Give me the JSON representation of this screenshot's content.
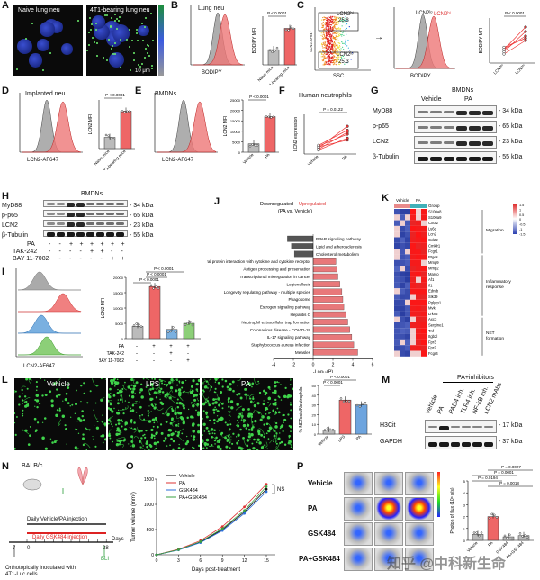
{
  "panels": {
    "A": {
      "letter": "A",
      "left": "Naive lung neu",
      "right": "4T1-bearing lung neu",
      "scale": "10 μm"
    },
    "B": {
      "letter": "B",
      "title": "Lung neu",
      "xlabel": "BODIPY",
      "ylabel": "BODIPY MFI",
      "cats": [
        "Naive mice",
        "4T1-bearing mice"
      ],
      "p": "P < 0.0001"
    },
    "C": {
      "letter": "C",
      "lcn2hi": "LCN2ʰⁱ",
      "lcn2hi_pct": "25.8",
      "lcn2lo": "LCN2ˡᵒ",
      "lcn2lo_pct": "25.3",
      "ylabel": "LCN2-AF647",
      "xlabel": "SSC",
      "xlabel2": "BODIPY",
      "ylabel2": "BODIPY MFI",
      "p": "P < 0.0001",
      "cats": [
        "LCN2ˡᵒ",
        "LCN2ʰⁱ"
      ]
    },
    "D": {
      "letter": "D",
      "title": "Implanted neu",
      "xlabel": "LCN2-AF647",
      "ylabel": "LCN2 MFI",
      "cats": [
        "Naive mice",
        "4T1-bearing mice"
      ],
      "p": "P < 0.0001"
    },
    "E": {
      "letter": "E",
      "title": "BMDNs",
      "xlabel": "LCN2-AF647",
      "ylabel": "LCN2 MFI",
      "cats": [
        "Vehicle",
        "PA"
      ],
      "p": "P < 0.0001"
    },
    "F": {
      "letter": "F",
      "title": "Human neutrophils",
      "ylabel": "LCN2 expression",
      "cats": [
        "Vehicle",
        "PA"
      ],
      "p": "P = 0.0122"
    },
    "G": {
      "letter": "G",
      "title": "BMDNs",
      "groups": [
        "Vehicle",
        "PA"
      ],
      "rows": [
        "MyD88",
        "p-p65",
        "LCN2",
        "β-Tubulin"
      ],
      "kda": [
        "34 kDa",
        "65 kDa",
        "23 kDa",
        "55 kDa"
      ]
    },
    "H": {
      "letter": "H",
      "title": "BMDNs",
      "rows": [
        "MyD88",
        "p-p65",
        "LCN2",
        "β-Tubulin"
      ],
      "kda": [
        "34 kDa",
        "65 kDa",
        "23 kDa",
        "55 kDa"
      ],
      "treat": [
        "PA",
        "TAK-242",
        "BAY 11-7082"
      ],
      "signs": [
        [
          "-",
          "+",
          "+",
          "+"
        ],
        [
          "-",
          "-",
          "+",
          "-"
        ],
        [
          "-",
          "-",
          "-",
          "+"
        ]
      ]
    },
    "I": {
      "letter": "I",
      "xlabel": "LCN2-AF647",
      "ylabel": "LCN2 MFI",
      "treat": [
        "PA",
        "TAK-242",
        "BAY 11-7082"
      ],
      "p": "P < 0.0001",
      "signs": [
        [
          "-",
          "+",
          "+",
          "+"
        ],
        [
          "-",
          "-",
          "+",
          "-"
        ],
        [
          "-",
          "-",
          "-",
          "+"
        ]
      ]
    },
    "J": {
      "letter": "J",
      "down": "Downregulated",
      "up": "Upregulated",
      "sub": "(PA vs. Vehicle)",
      "xlabel": "-Log₁₀(P)",
      "ticks": [
        "-4",
        "-2",
        "0",
        "2",
        "4",
        "6"
      ],
      "pathways": [
        "PPAR signaling pathway",
        "Lipid and atherosclerosis",
        "Cholesterol metabolism",
        "Viral protein interaction with cytokine and cytokine receptor",
        "Antigen processing and presentation",
        "Transcriptional misregulation in cancer",
        "Legionellosis",
        "Longevity regulating pathway - multiple species",
        "Phagosome",
        "Estrogen signaling pathway",
        "Hepatitis C",
        "Neutrophil extracellular trap formation",
        "Coronavirus disease - COVID-19",
        "IL-17 signaling pathway",
        "Staphylococcus aureus infection",
        "Measles"
      ]
    },
    "K": {
      "letter": "K",
      "groups": [
        "Vehicle",
        "PA"
      ],
      "group_lbl": "Group",
      "scale": [
        "1.5",
        "1",
        "0.5",
        "0",
        "-0.5",
        "-1",
        "-1.5"
      ],
      "genes": [
        "S100a8",
        "S100a9",
        "Cxcr2",
        "Ly6g",
        "Lcn2",
        "Ccl22",
        "Cmklr1",
        "Fcgr1",
        "Ptges",
        "Mmp9",
        "Mmp2",
        "Marco",
        "Af1",
        "Il1",
        "Ednrb",
        "Slk39",
        "Pglyrp1",
        "Mvk",
        "Lrkn5",
        "Axc3",
        "Serpine1",
        "Tnf",
        "Itgb2l",
        "Fpr3",
        "Fpr2",
        "Fcgr4"
      ],
      "cats": [
        "Migration",
        "Inflammatory response",
        "NET formation"
      ]
    },
    "L": {
      "letter": "L",
      "imgs": [
        "Vehicle",
        "LPS",
        "PA"
      ],
      "ylabel": "% NETosis/Neutrophils",
      "cats": [
        "Vehicle",
        "LPS",
        "PA"
      ],
      "p1": "P < 0.0001",
      "p2": "P < 0.0001"
    },
    "M": {
      "letter": "M",
      "title": "PA+inhibitors",
      "lanes": [
        "Vehicle",
        "PA",
        "PAD4 inh.",
        "TLR4 inh.",
        "NF-kB inh.",
        "LCN2 mAbs"
      ],
      "rows": [
        "H3Cit",
        "GAPDH"
      ],
      "kda": [
        "17 kDa",
        "37 kDa"
      ]
    },
    "N": {
      "letter": "N",
      "mouse": "BALB/c",
      "daily1": "Daily Vehicle/PA injection",
      "daily2": "Daily GSK484 injection",
      "days": "Days",
      "d0": "0",
      "dm7": "-7",
      "d28": "28",
      "bli": "BLI",
      "note": "Orthotopically inoculated with 4T1-Luc cells"
    },
    "O": {
      "letter": "O",
      "series": [
        "Vehicle",
        "PA",
        "GSK484",
        "PA+GSK484"
      ],
      "ylabel": "Tumor volume (mm³)",
      "xlabel": "Days post-treatment",
      "ns": "NS",
      "xticks": [
        "0",
        "3",
        "6",
        "9",
        "12",
        "15"
      ],
      "yticks": [
        "0",
        "500",
        "1000",
        "1500"
      ]
    },
    "P": {
      "letter": "P",
      "rows": [
        "Vehicle",
        "PA",
        "GSK484",
        "PA+GSK484"
      ],
      "ylabel": "Photon of flux (10⁶ p/s)",
      "cats": [
        "Vehicle",
        "PA",
        "GSK484",
        "PA+GSK484"
      ],
      "p": [
        "P = 0.0027",
        "P = 0.0001",
        "P = 0.0194",
        "P = 0.0018"
      ]
    },
    "watermark": "知乎 @中科新生命"
  },
  "chart_data": [
    {
      "type": "bar",
      "panel": "B",
      "categories": [
        "Naive mice",
        "4T1-bearing mice"
      ],
      "values": [
        500,
        1200
      ],
      "title": "Lung neu",
      "ylabel": "BODIPY MFI"
    },
    {
      "type": "bar",
      "panel": "D",
      "categories": [
        "Naive mice",
        "4T1-bearing mice"
      ],
      "values": [
        3000,
        10000
      ],
      "title": "Implanted neu",
      "ylabel": "LCN2 MFI"
    },
    {
      "type": "bar",
      "panel": "E",
      "categories": [
        "Vehicle",
        "PA"
      ],
      "values": [
        4000,
        17000
      ],
      "ylabel": "LCN2 MFI",
      "ylim": [
        0,
        25000
      ],
      "yticks": [
        0,
        5000,
        10000,
        15000,
        20000,
        25000
      ]
    },
    {
      "type": "bar",
      "panel": "I",
      "categories": [
        "1",
        "2",
        "3",
        "4"
      ],
      "values": [
        4000,
        17000,
        3000,
        5000
      ],
      "ylabel": "LCN2 MFI",
      "ylim": [
        0,
        20000
      ],
      "yticks": [
        0,
        5000,
        10000,
        15000,
        20000
      ]
    },
    {
      "type": "bar",
      "panel": "J",
      "categories": [
        "PPAR signaling pathway",
        "Lipid and atherosclerosis",
        "Cholesterol metabolism",
        "Viral protein interaction with cytokine and cytokine receptor",
        "Antigen processing and presentation",
        "Transcriptional misregulation in cancer",
        "Legionellosis",
        "Longevity regulating pathway - multiple species",
        "Phagosome",
        "Estrogen signaling pathway",
        "Hepatitis C",
        "Neutrophil extracellular trap formation",
        "Coronavirus disease - COVID-19",
        "IL-17 signaling pathway",
        "Staphylococcus aureus infection",
        "Measles"
      ],
      "values": [
        -2.6,
        -2.2,
        -1.9,
        2.3,
        2.4,
        2.5,
        2.7,
        2.9,
        3.0,
        3.1,
        3.3,
        3.5,
        3.7,
        3.9,
        4.1,
        4.5
      ],
      "xlabel": "-Log₁₀(P)",
      "xlim": [
        -4,
        6
      ]
    },
    {
      "type": "bar",
      "panel": "L",
      "categories": [
        "Vehicle",
        "LPS",
        "PA"
      ],
      "values": [
        4,
        35,
        30
      ],
      "ylabel": "% NETosis/Neutrophils",
      "ylim": [
        0,
        50
      ],
      "yticks": [
        0,
        10,
        20,
        30,
        40,
        50
      ]
    },
    {
      "type": "line",
      "panel": "O",
      "x": [
        0,
        3,
        6,
        9,
        12,
        15
      ],
      "series": [
        {
          "name": "Vehicle",
          "values": [
            0,
            100,
            250,
            500,
            850,
            1300
          ]
        },
        {
          "name": "PA",
          "values": [
            0,
            110,
            280,
            560,
            950,
            1400
          ]
        },
        {
          "name": "GSK484",
          "values": [
            0,
            95,
            240,
            480,
            820,
            1250
          ]
        },
        {
          "name": "PA+GSK484",
          "values": [
            0,
            100,
            260,
            520,
            880,
            1350
          ]
        }
      ],
      "ylim": [
        0,
        1500
      ],
      "xlabel": "Days post-treatment",
      "ylabel": "Tumor volume (mm³)"
    },
    {
      "type": "bar",
      "panel": "P",
      "categories": [
        "Vehicle",
        "PA",
        "GSK484",
        "PA+GSK484"
      ],
      "values": [
        0.5,
        2.0,
        0.3,
        0.4
      ],
      "ylim": [
        0,
        5
      ],
      "yticks": [
        0,
        1,
        2,
        3,
        4,
        5
      ],
      "ylabel": "Photon of flux (10⁶ p/s)"
    }
  ]
}
